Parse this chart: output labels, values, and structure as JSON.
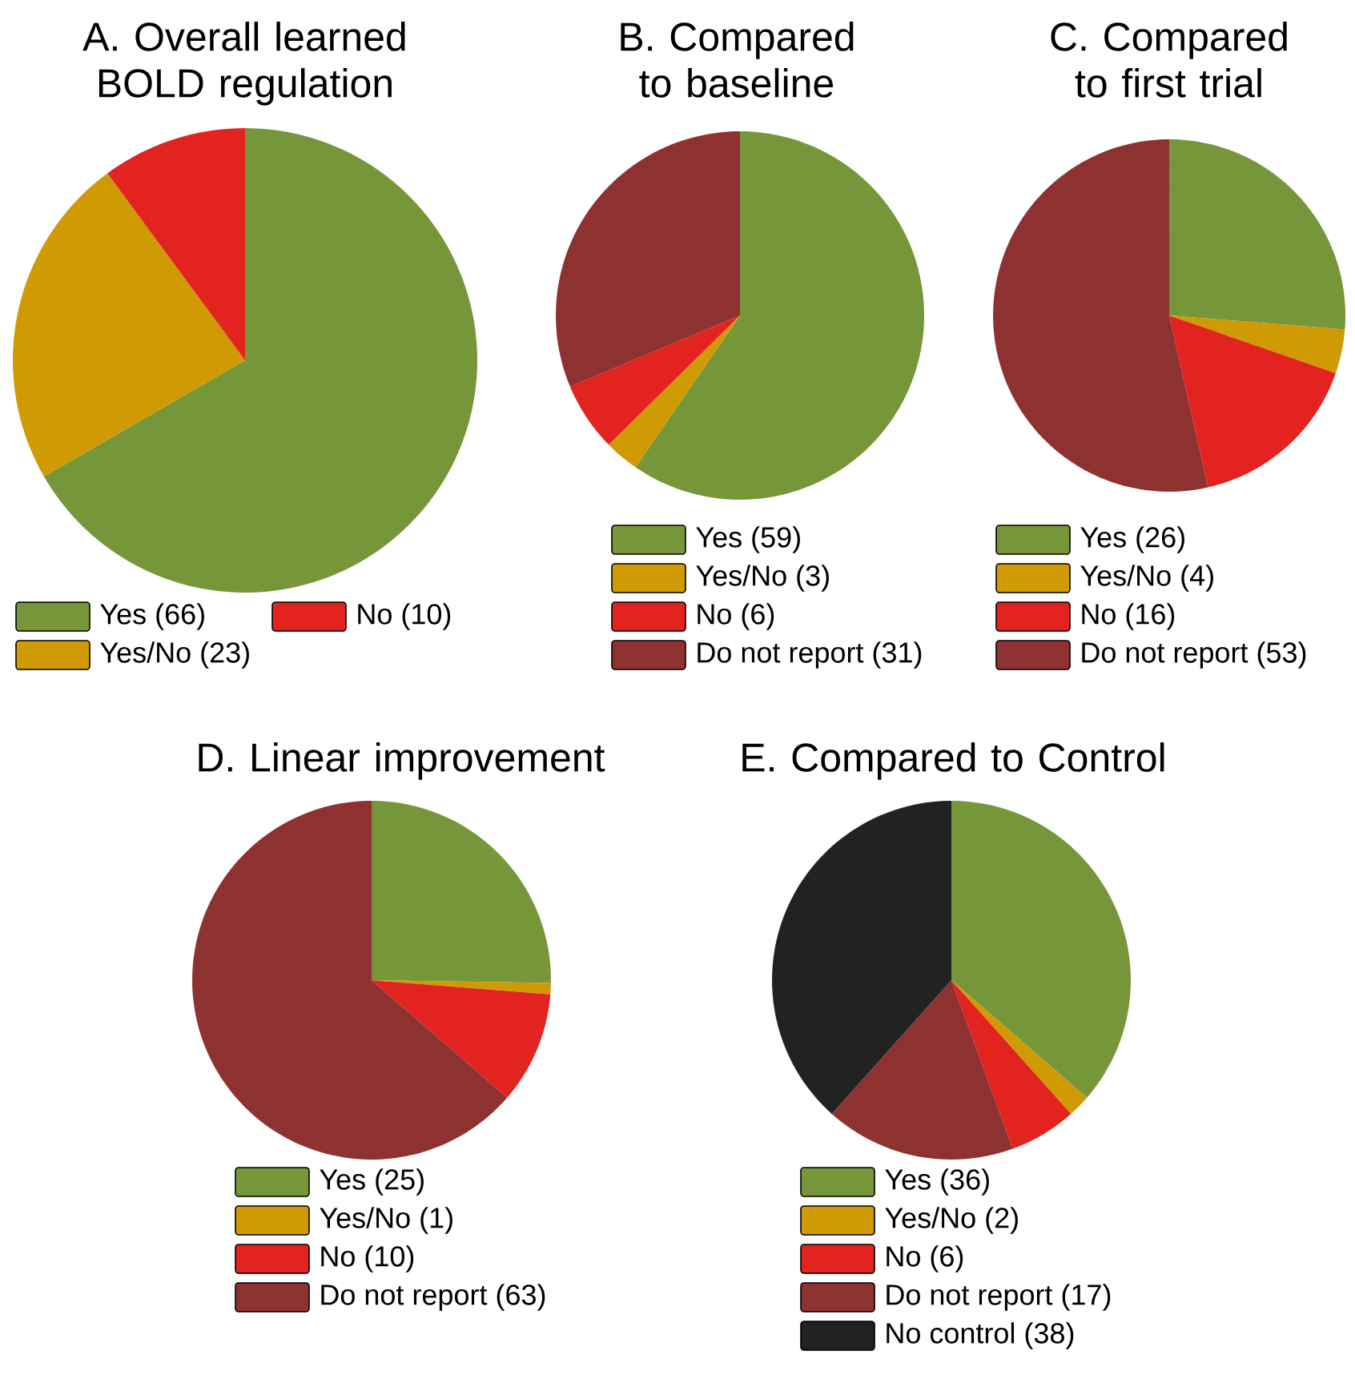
{
  "chart_data": [
    {
      "type": "pie",
      "title": "A. Overall learned BOLD regulation",
      "categories": [
        "Yes (66)",
        "Yes/No (23)",
        "No (10)"
      ],
      "values": [
        66,
        23,
        10
      ],
      "colors": [
        "#76963a",
        "#d09a04",
        "#e2231f"
      ],
      "legend": "bottom"
    },
    {
      "type": "pie",
      "title": "B. Compared to baseline",
      "categories": [
        "Yes (59)",
        "Yes/No (3)",
        "No (6)",
        "Do not report (31)"
      ],
      "values": [
        59,
        3,
        6,
        31
      ],
      "colors": [
        "#76963a",
        "#d09a04",
        "#e2231f",
        "#8e3231"
      ],
      "legend": "bottom"
    },
    {
      "type": "pie",
      "title": "C. Compared to first trial",
      "categories": [
        "Yes (26)",
        "Yes/No (4)",
        "No (16)",
        "Do not report (53)"
      ],
      "values": [
        26,
        4,
        16,
        53
      ],
      "colors": [
        "#76963a",
        "#d09a04",
        "#e2231f",
        "#8e3231"
      ],
      "legend": "bottom"
    },
    {
      "type": "pie",
      "title": "D. Linear improvement",
      "categories": [
        "Yes (25)",
        "Yes/No (1)",
        "No (10)",
        "Do not report (63)"
      ],
      "values": [
        25,
        1,
        10,
        63
      ],
      "colors": [
        "#76963a",
        "#d09a04",
        "#e2231f",
        "#8e3231"
      ],
      "legend": "bottom"
    },
    {
      "type": "pie",
      "title": "E. Compared to Control",
      "categories": [
        "Yes (36)",
        "Yes/No (2)",
        "No (6)",
        "Do not report (17)",
        "No control (38)"
      ],
      "values": [
        36,
        2,
        6,
        17,
        38
      ],
      "colors": [
        "#76963a",
        "#d09a04",
        "#e2231f",
        "#8e3231",
        "#222222"
      ],
      "legend": "bottom"
    }
  ]
}
